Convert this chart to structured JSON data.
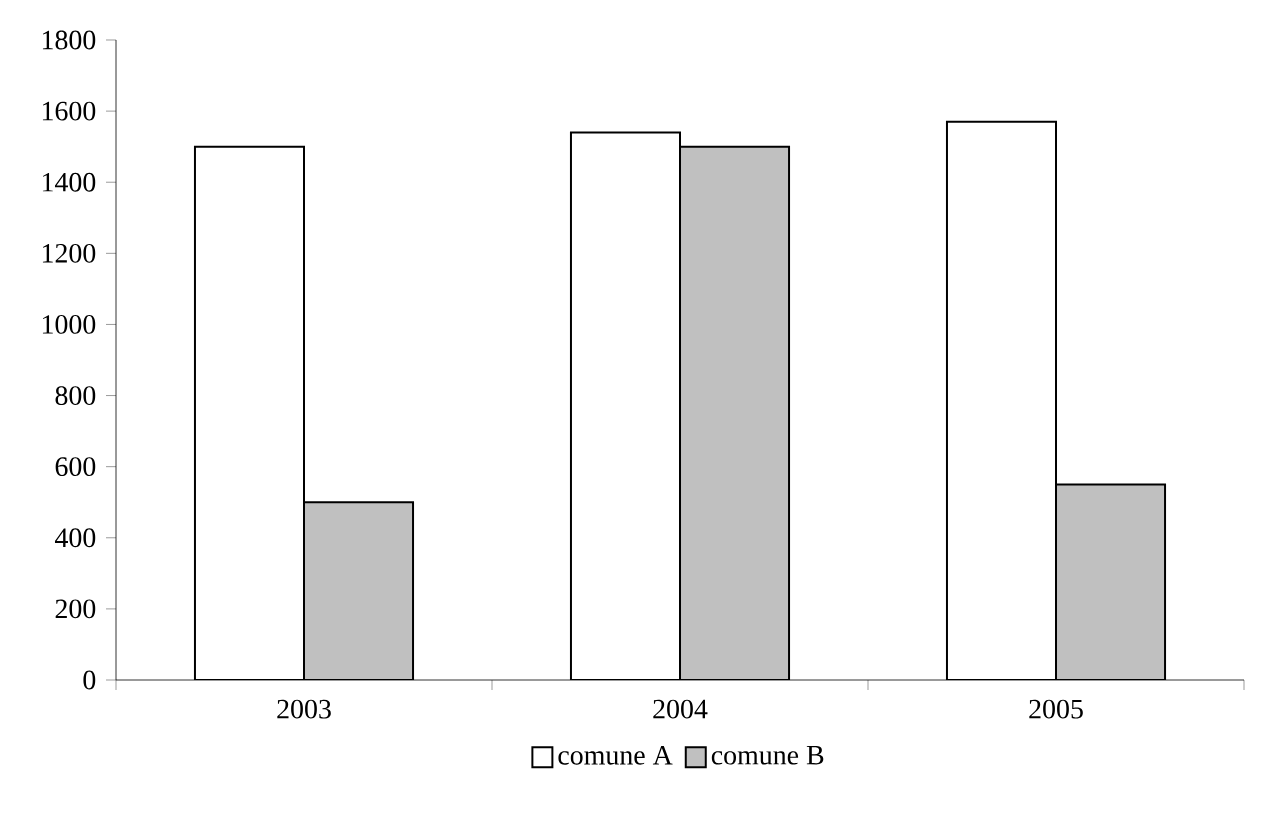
{
  "chart_data": {
    "type": "bar",
    "categories": [
      "2003",
      "2004",
      "2005"
    ],
    "series": [
      {
        "name": "comune A",
        "color": "#ffffff",
        "values": [
          1500,
          1540,
          1570
        ]
      },
      {
        "name": "comune B",
        "color": "#c0c0c0",
        "values": [
          500,
          1500,
          550
        ]
      }
    ],
    "ylim": [
      0,
      1800
    ],
    "yticks": [
      0,
      200,
      400,
      600,
      800,
      1000,
      1200,
      1400,
      1600,
      1800
    ],
    "grid": false,
    "legend": "bottom"
  }
}
